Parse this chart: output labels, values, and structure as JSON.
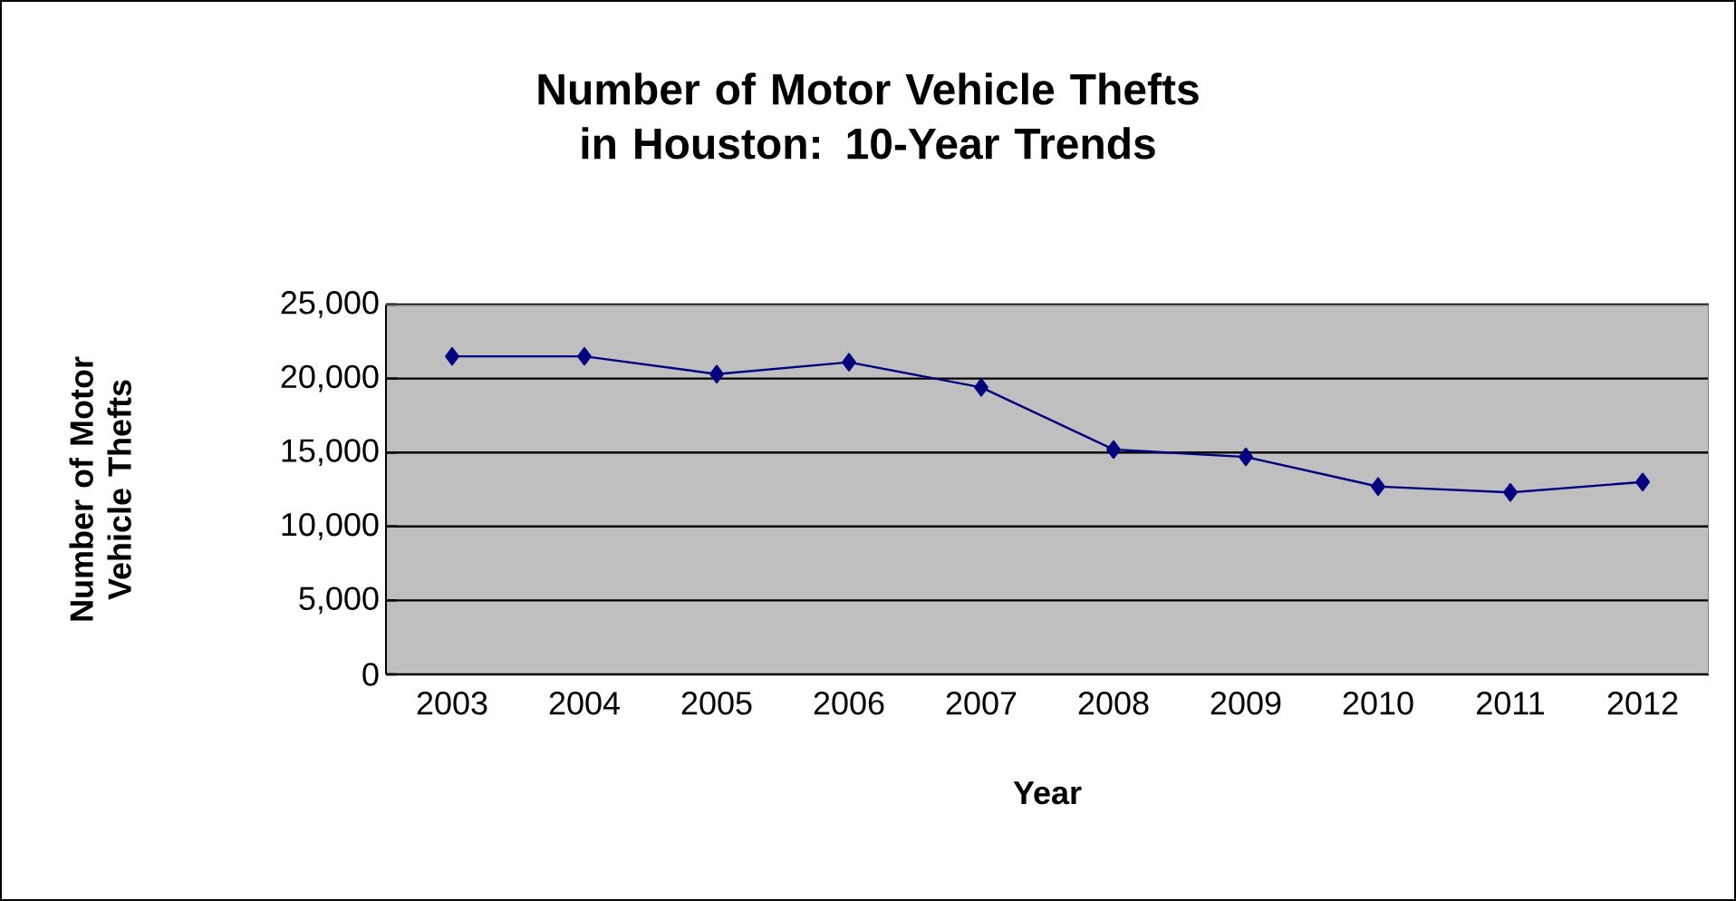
{
  "chart_data": {
    "type": "line",
    "title": "Number of Motor Vehicle Thefts in Houston: 10-Year Trends",
    "xlabel": "Year",
    "ylabel": "Number of Motor Vehicle Thefts",
    "categories": [
      "2003",
      "2004",
      "2005",
      "2006",
      "2007",
      "2008",
      "2009",
      "2010",
      "2011",
      "2012"
    ],
    "series": [
      {
        "color": "#000080",
        "values": [
          21500,
          21500,
          20300,
          21100,
          19400,
          15200,
          14700,
          12700,
          12300,
          13000
        ]
      }
    ],
    "ylim": [
      0,
      25000
    ],
    "yticks": [
      0,
      {
        "value": 5000,
        "label": "5,000"
      },
      {
        "value": 10000,
        "label": "10,000"
      },
      {
        "value": 15000,
        "label": "15,000"
      },
      {
        "value": 20000,
        "label": "20,000"
      },
      {
        "value": 25000,
        "label": "25,000"
      }
    ],
    "grid": "y",
    "marker": "diamond",
    "line_style": "solid"
  }
}
